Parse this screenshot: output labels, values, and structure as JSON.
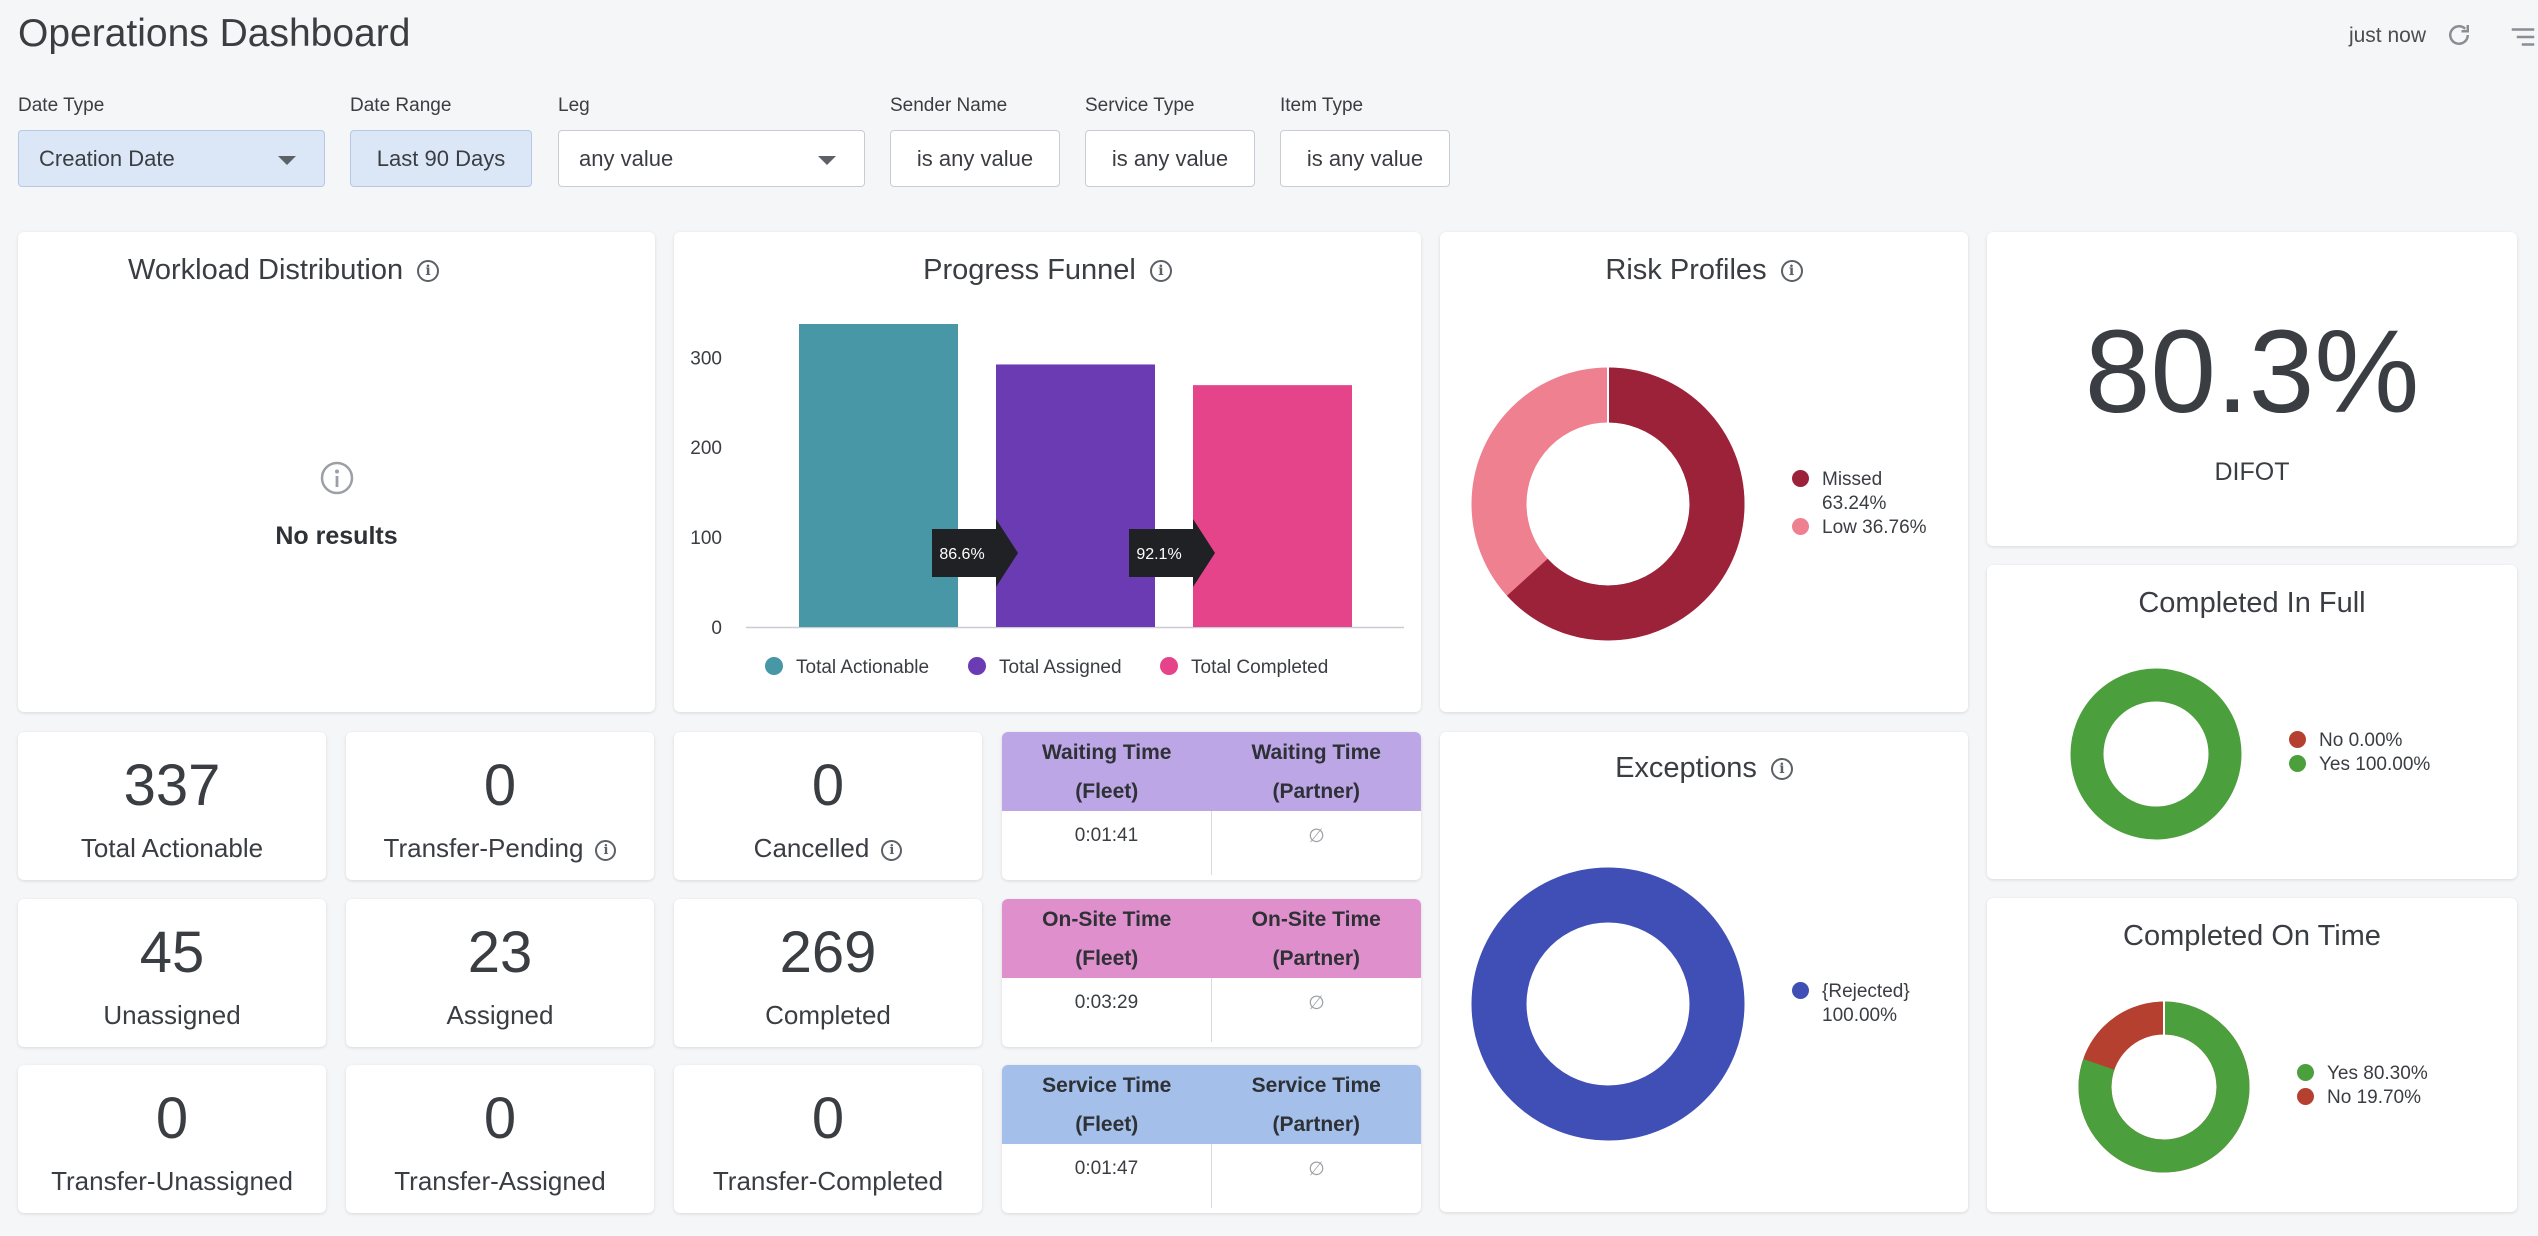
{
  "header": {
    "title": "Operations Dashboard",
    "updated": "just now"
  },
  "filters": [
    {
      "label": "Date Type",
      "value": "Creation Date"
    },
    {
      "label": "Date Range",
      "value": "Last 90 Days"
    },
    {
      "label": "Leg",
      "value": "any value"
    },
    {
      "label": "Sender Name",
      "value": "is any value"
    },
    {
      "label": "Service Type",
      "value": "is any value"
    },
    {
      "label": "Item Type",
      "value": "is any value"
    }
  ],
  "workload": {
    "title": "Workload Distribution",
    "empty_text": "No results"
  },
  "funnel": {
    "title": "Progress Funnel",
    "conversions": [
      "86.6%",
      "92.1%"
    ]
  },
  "risk": {
    "title": "Risk Profiles",
    "legend": [
      {
        "name": "Missed",
        "pct": "63.24%",
        "color": "#9b2239"
      },
      {
        "name": "Low",
        "pct": "36.76%",
        "color": "#ef808f"
      }
    ]
  },
  "difot": {
    "value": "80.3%",
    "label": "DIFOT"
  },
  "cif": {
    "title": "Completed In Full",
    "legend": [
      {
        "text": "No 0.00%",
        "color": "#b54030"
      },
      {
        "text": "Yes 100.00%",
        "color": "#4c9f3d"
      }
    ]
  },
  "cot": {
    "title": "Completed On Time",
    "legend": [
      {
        "text": "Yes 80.30%",
        "color": "#4c9f3d"
      },
      {
        "text": "No 19.70%",
        "color": "#b54030"
      }
    ]
  },
  "exceptions": {
    "title": "Exceptions",
    "legend": [
      {
        "name": "{Rejected}",
        "pct": "100.00%",
        "color": "#3f4fb5"
      }
    ]
  },
  "stats": [
    {
      "value": "337",
      "label": "Total Actionable"
    },
    {
      "value": "0",
      "label": "Transfer-Pending"
    },
    {
      "value": "0",
      "label": "Cancelled"
    },
    {
      "value": "45",
      "label": "Unassigned"
    },
    {
      "value": "23",
      "label": "Assigned"
    },
    {
      "value": "269",
      "label": "Completed"
    },
    {
      "value": "0",
      "label": "Transfer-Unassigned"
    },
    {
      "value": "0",
      "label": "Transfer-Assigned"
    },
    {
      "value": "0",
      "label": "Transfer-Completed"
    }
  ],
  "times": [
    {
      "col1": [
        "Waiting Time",
        "(Fleet)"
      ],
      "col2": [
        "Waiting Time",
        "(Partner)"
      ],
      "fleet": "0:01:41",
      "partner": "∅",
      "color": "#bca6e6"
    },
    {
      "col1": [
        "On-Site Time",
        "(Fleet)"
      ],
      "col2": [
        "On-Site Time",
        "(Partner)"
      ],
      "fleet": "0:03:29",
      "partner": "∅",
      "color": "#e08fcd"
    },
    {
      "col1": [
        "Service Time",
        "(Fleet)"
      ],
      "col2": [
        "Service Time",
        "(Partner)"
      ],
      "fleet": "0:01:47",
      "partner": "∅",
      "color": "#a3bfea"
    }
  ],
  "chart_data": {
    "type": "bar",
    "title": "Progress Funnel",
    "categories": [
      "Total Actionable",
      "Total Assigned",
      "Total Completed"
    ],
    "values": [
      337,
      292,
      269
    ],
    "colors": [
      "#4797a6",
      "#6a3bb3",
      "#e5448a"
    ],
    "yticks": [
      0,
      100,
      200,
      300
    ],
    "ylim": [
      0,
      337
    ],
    "legend": "bottom"
  }
}
